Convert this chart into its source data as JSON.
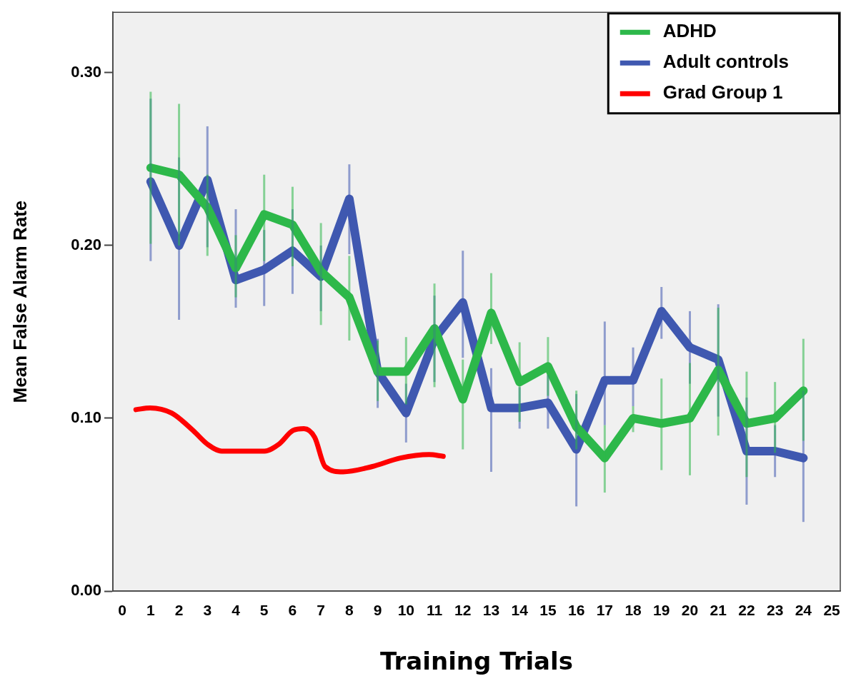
{
  "chart_data": {
    "type": "line",
    "xlabel": "Training Trials",
    "ylabel": "Mean False Alarm Rate",
    "xlim": [
      -0.33,
      25.3
    ],
    "xticks": [
      0,
      1,
      2,
      3,
      4,
      5,
      6,
      7,
      8,
      9,
      10,
      11,
      12,
      13,
      14,
      15,
      16,
      17,
      18,
      19,
      20,
      21,
      22,
      23,
      24,
      25
    ],
    "ylim": [
      0,
      0.335
    ],
    "yticks": [
      {
        "value": 0,
        "label": "0.00"
      },
      {
        "value": 0.1,
        "label": "0.10"
      },
      {
        "value": 0.2,
        "label": "0.20"
      },
      {
        "value": 0.3,
        "label": "0.30"
      }
    ],
    "grid": false,
    "legend": "top right",
    "marker": "none",
    "line_style": "solid",
    "series": [
      {
        "name": "ADHD",
        "color": "#2db84a",
        "x": [
          1,
          2,
          3,
          4,
          5,
          6,
          7,
          8,
          9,
          10,
          11,
          12,
          13,
          14,
          15,
          16,
          17,
          18,
          19,
          20,
          21,
          22,
          23,
          24
        ],
        "values": [
          0.245,
          0.241,
          0.222,
          0.187,
          0.218,
          0.212,
          0.185,
          0.17,
          0.127,
          0.127,
          0.152,
          0.111,
          0.161,
          0.121,
          0.13,
          0.095,
          0.077,
          0.1,
          0.097,
          0.1,
          0.128,
          0.097,
          0.1,
          0.116
        ],
        "errors": [
          [
            0.201,
            0.289
          ],
          [
            0.2,
            0.282
          ],
          [
            0.194,
            0.241
          ],
          [
            0.17,
            0.206
          ],
          [
            0.191,
            0.241
          ],
          [
            0.188,
            0.234
          ],
          [
            0.154,
            0.213
          ],
          [
            0.145,
            0.194
          ],
          [
            0.11,
            0.145
          ],
          [
            0.108,
            0.147
          ],
          [
            0.118,
            0.178
          ],
          [
            0.082,
            0.134
          ],
          [
            0.143,
            0.184
          ],
          [
            0.098,
            0.144
          ],
          [
            0.113,
            0.147
          ],
          [
            0.082,
            0.116
          ],
          [
            0.057,
            0.096
          ],
          [
            0.092,
            0.107
          ],
          [
            0.07,
            0.123
          ],
          [
            0.067,
            0.132
          ],
          [
            0.09,
            0.164
          ],
          [
            0.066,
            0.127
          ],
          [
            0.08,
            0.121
          ],
          [
            0.087,
            0.146
          ]
        ]
      },
      {
        "name": "Adult controls",
        "color": "#3f58b0",
        "x": [
          1,
          2,
          3,
          4,
          5,
          6,
          7,
          8,
          9,
          10,
          11,
          12,
          13,
          14,
          15,
          16,
          17,
          18,
          19,
          20,
          21,
          22,
          23,
          24
        ],
        "values": [
          0.237,
          0.2,
          0.238,
          0.18,
          0.186,
          0.197,
          0.182,
          0.227,
          0.127,
          0.103,
          0.146,
          0.167,
          0.106,
          0.106,
          0.109,
          0.082,
          0.122,
          0.122,
          0.162,
          0.141,
          0.134,
          0.081,
          0.081,
          0.077
        ],
        "errors": [
          [
            0.191,
            0.285
          ],
          [
            0.157,
            0.251
          ],
          [
            0.199,
            0.269
          ],
          [
            0.164,
            0.221
          ],
          [
            0.165,
            0.209
          ],
          [
            0.172,
            0.221
          ],
          [
            0.162,
            0.2
          ],
          [
            0.195,
            0.247
          ],
          [
            0.106,
            0.146
          ],
          [
            0.086,
            0.12
          ],
          [
            0.121,
            0.171
          ],
          [
            0.135,
            0.197
          ],
          [
            0.069,
            0.129
          ],
          [
            0.094,
            0.118
          ],
          [
            0.094,
            0.125
          ],
          [
            0.049,
            0.114
          ],
          [
            0.096,
            0.156
          ],
          [
            0.107,
            0.141
          ],
          [
            0.146,
            0.176
          ],
          [
            0.12,
            0.162
          ],
          [
            0.101,
            0.166
          ],
          [
            0.05,
            0.112
          ],
          [
            0.066,
            0.096
          ],
          [
            0.04,
            0.116
          ]
        ]
      },
      {
        "name": "Grad Group 1",
        "color": "#ff0000",
        "x": [
          0.48,
          0.98,
          1.74,
          2.49,
          3.0,
          3.5,
          4.26,
          5.01,
          5.52,
          6.02,
          6.4,
          6.78,
          7.15,
          7.78,
          8.79,
          9.8,
          10.81,
          11.31
        ],
        "values": [
          0.105,
          0.106,
          0.103,
          0.093,
          0.085,
          0.081,
          0.081,
          0.081,
          0.085,
          0.093,
          0.094,
          0.089,
          0.072,
          0.069,
          0.072,
          0.077,
          0.079,
          0.078
        ]
      }
    ]
  }
}
